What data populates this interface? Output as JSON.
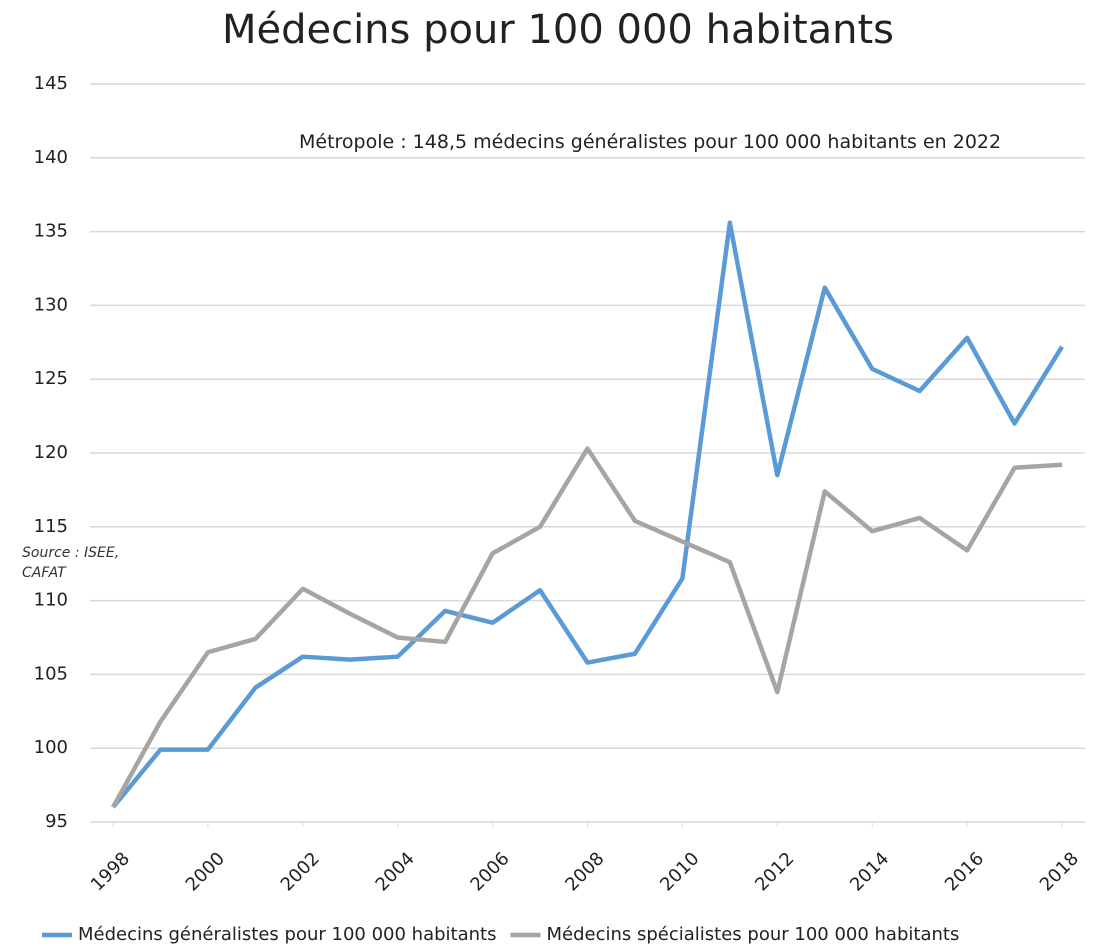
{
  "chart_data": {
    "type": "line",
    "title": "Médecins pour 100 000 habitants",
    "annotations": [
      "Métropole : 148,5 médecins généralistes pour 100 000 habitants en 2022",
      "Source : ISEE, CAFAT"
    ],
    "x": [
      1998,
      1999,
      2000,
      2001,
      2002,
      2003,
      2004,
      2005,
      2006,
      2007,
      2008,
      2009,
      2010,
      2011,
      2012,
      2013,
      2014,
      2015,
      2016,
      2017,
      2018
    ],
    "xlim": [
      1998,
      2018
    ],
    "xticks": [
      1998,
      2000,
      2002,
      2004,
      2006,
      2008,
      2010,
      2012,
      2014,
      2016,
      2018
    ],
    "ylim": [
      95,
      145
    ],
    "yticks": [
      95,
      100,
      105,
      110,
      115,
      120,
      125,
      130,
      135,
      140,
      145
    ],
    "grid": true,
    "legend": "bottom",
    "series": [
      {
        "name": "Médecins généralistes pour 100 000 habitants",
        "color": "#5b9bd5",
        "values": [
          96,
          99.9,
          99.9,
          104.1,
          106.2,
          106.0,
          106.2,
          109.3,
          108.5,
          110.7,
          105.8,
          106.4,
          111.5,
          135.6,
          118.5,
          131.2,
          125.7,
          124.2,
          127.8,
          122.0,
          127.2
        ]
      },
      {
        "name": "Médecins spécialistes pour 100 000 habitants",
        "color": "#a5a5a5",
        "values": [
          96,
          101.8,
          106.5,
          107.4,
          110.8,
          109.1,
          107.5,
          107.2,
          113.2,
          115.0,
          120.3,
          115.4,
          114.0,
          112.6,
          103.8,
          117.4,
          114.7,
          115.6,
          113.4,
          119.0,
          119.2
        ]
      }
    ]
  }
}
